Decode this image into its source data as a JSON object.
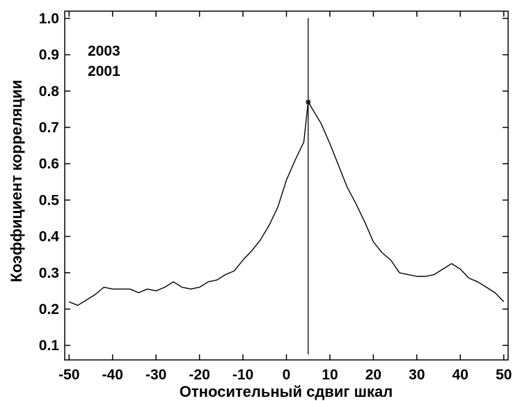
{
  "chart_data": {
    "type": "line",
    "title": "",
    "xlabel": "Относительный сдвиг шкал",
    "ylabel": "Коэффициент корреляции",
    "xlim": [
      -51,
      51
    ],
    "ylim": [
      0.06,
      1.02
    ],
    "x_ticks": [
      -50,
      -40,
      -30,
      -20,
      -10,
      0,
      10,
      20,
      30,
      40,
      50
    ],
    "x_tick_labels": [
      "-50",
      "-40",
      "-30",
      "-20",
      "-10",
      "0",
      "10",
      "20",
      "30",
      "40",
      "50"
    ],
    "y_ticks": [
      0.1,
      0.2,
      0.3,
      0.4,
      0.5,
      0.6,
      0.7,
      0.8,
      0.9,
      1.0
    ],
    "y_tick_labels": [
      "0.1",
      "0.2",
      "0.3",
      "0.4",
      "0.5",
      "0.6",
      "0.7",
      "0.8",
      "0.9",
      "1.0"
    ],
    "annotations": [
      "2003",
      "2001"
    ],
    "grid": false,
    "vertical_line_x": 5,
    "peak": {
      "x": 5,
      "y": 0.77
    },
    "series": [
      {
        "x": [
          -50,
          -48,
          -46,
          -44,
          -42,
          -40,
          -38,
          -36,
          -34,
          -32,
          -30,
          -28,
          -26,
          -24,
          -22,
          -20,
          -18,
          -16,
          -14,
          -12,
          -10,
          -8,
          -6,
          -4,
          -2,
          0,
          2,
          4,
          5,
          6,
          8,
          10,
          12,
          14,
          16,
          18,
          20,
          22,
          24,
          26,
          28,
          30,
          32,
          34,
          36,
          38,
          40,
          42,
          44,
          46,
          48,
          50
        ],
        "y": [
          0.22,
          0.21,
          0.225,
          0.24,
          0.26,
          0.255,
          0.255,
          0.255,
          0.245,
          0.255,
          0.25,
          0.26,
          0.275,
          0.26,
          0.255,
          0.26,
          0.275,
          0.28,
          0.295,
          0.305,
          0.335,
          0.36,
          0.39,
          0.43,
          0.48,
          0.555,
          0.61,
          0.66,
          0.77,
          0.75,
          0.71,
          0.655,
          0.595,
          0.535,
          0.49,
          0.44,
          0.385,
          0.355,
          0.335,
          0.3,
          0.295,
          0.29,
          0.29,
          0.295,
          0.31,
          0.325,
          0.31,
          0.285,
          0.275,
          0.26,
          0.245,
          0.22
        ]
      }
    ]
  }
}
